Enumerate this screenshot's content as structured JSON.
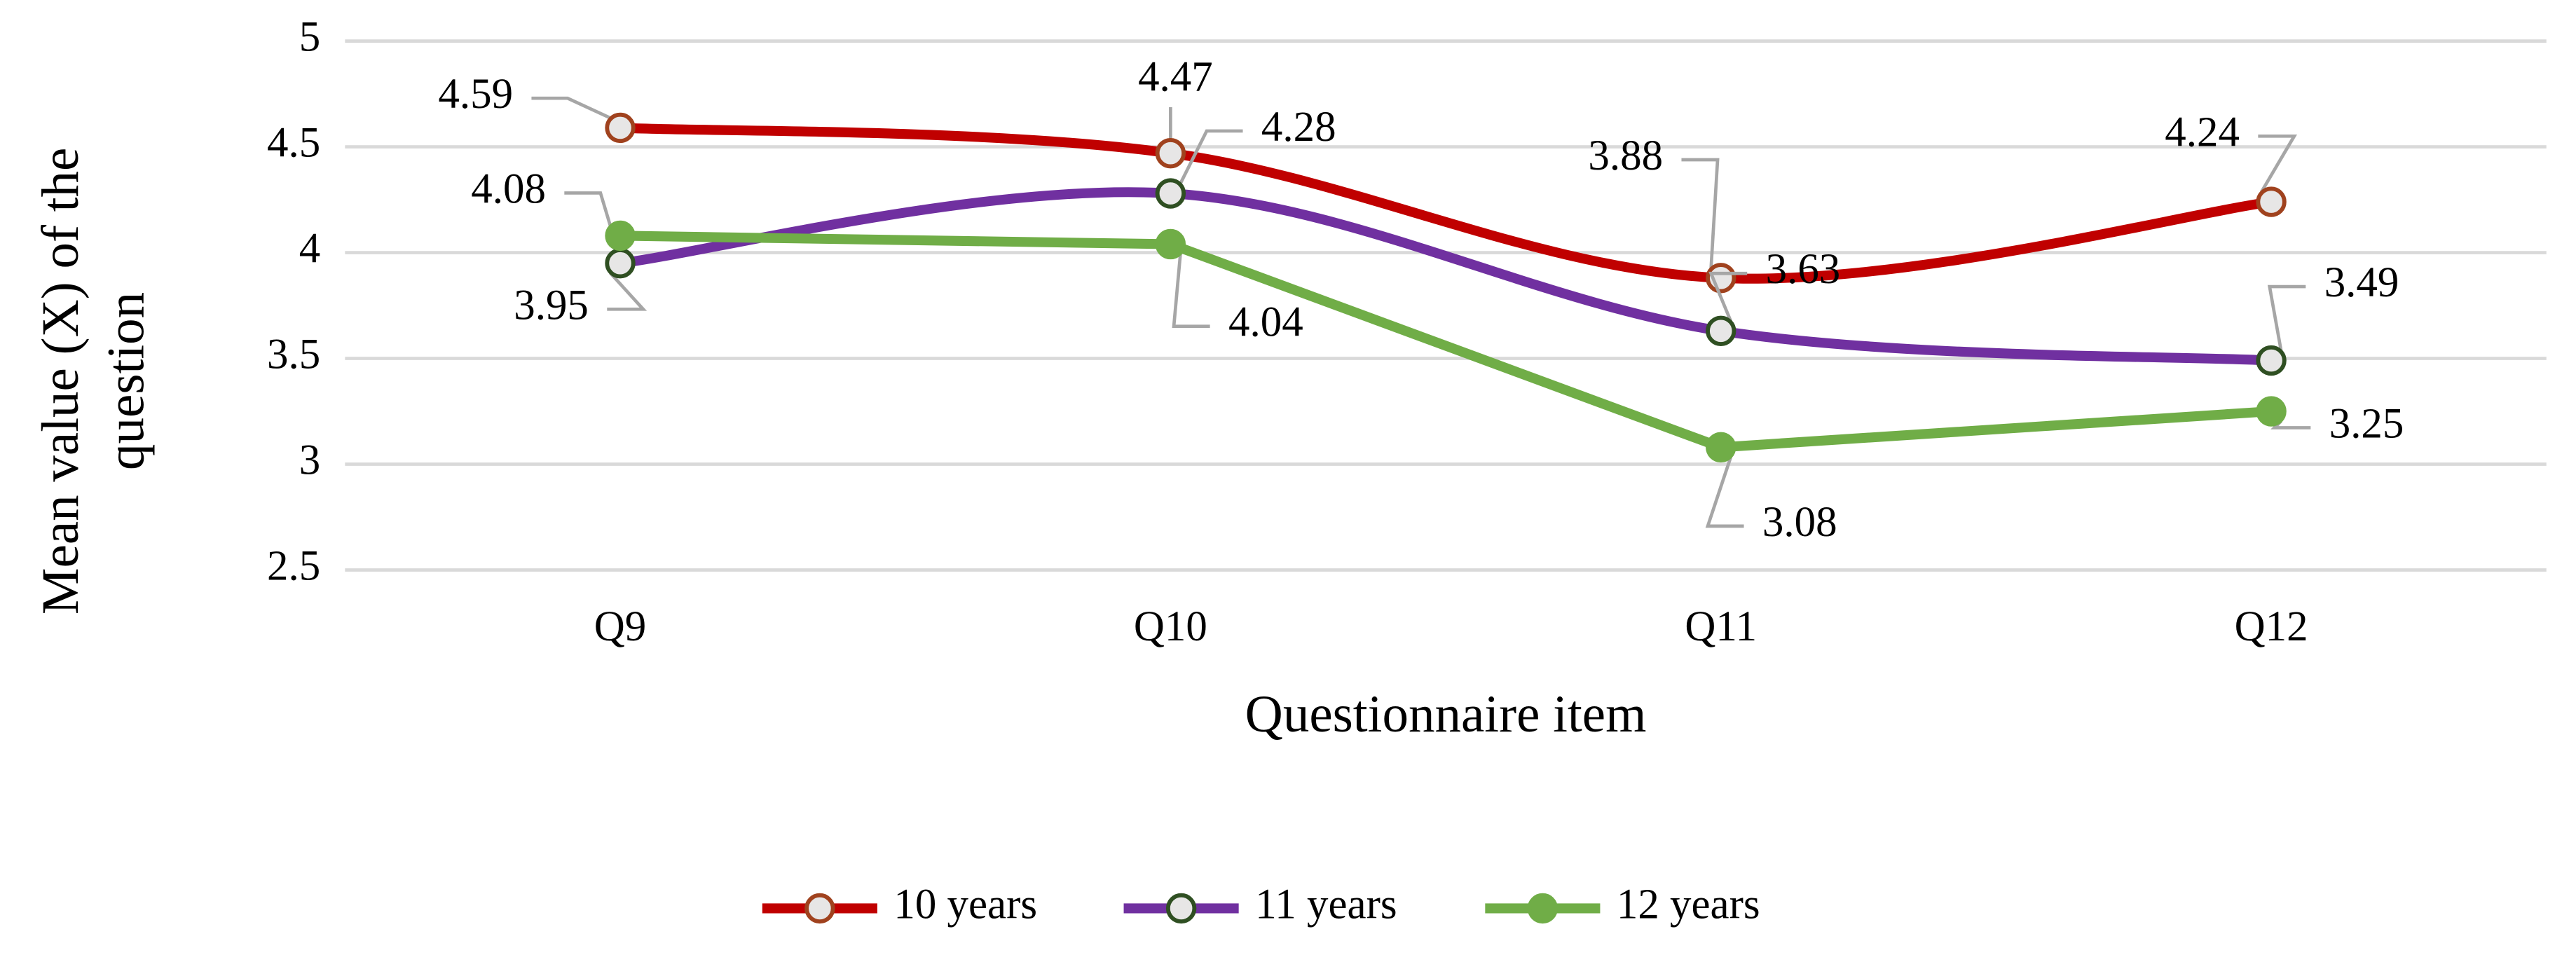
{
  "chart_data": {
    "type": "line",
    "categories": [
      "Q9",
      "Q10",
      "Q11",
      "Q12"
    ],
    "x_label": "Questionnaire item",
    "y_label": "Mean value (X) of the question",
    "ylim": [
      2.5,
      5
    ],
    "yticks": [
      2.5,
      3,
      3.5,
      4,
      4.5,
      5
    ],
    "grid": true,
    "legend": "bottom",
    "series": [
      {
        "name": "10 years",
        "color": "#c00000",
        "smooth": true,
        "marker_fill": "#e7e6e6",
        "marker_edge": "#a0421e",
        "values": [
          4.59,
          4.47,
          3.88,
          4.24
        ]
      },
      {
        "name": "11 years",
        "color": "#7030a0",
        "smooth": true,
        "marker_fill": "#e7e6e6",
        "marker_edge": "#2f4f22",
        "values": [
          3.95,
          4.28,
          3.63,
          3.49
        ]
      },
      {
        "name": "12 years",
        "color": "#70ad47",
        "smooth": false,
        "marker_fill": "#70ad47",
        "marker_edge": "#70ad47",
        "values": [
          4.08,
          4.04,
          3.08,
          3.25
        ]
      }
    ]
  }
}
